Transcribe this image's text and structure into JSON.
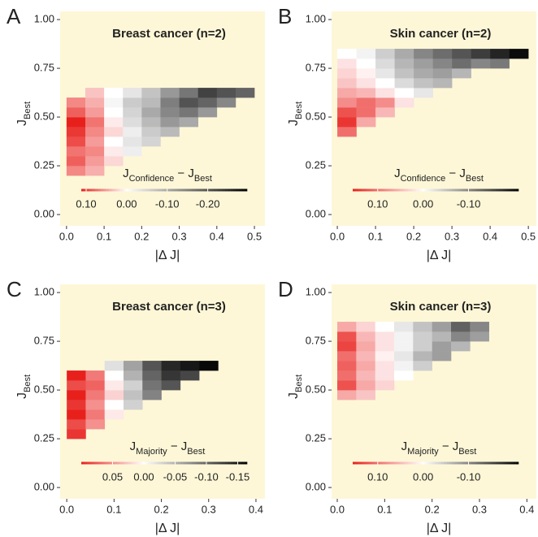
{
  "chart_data": [
    {
      "type": "heatmap",
      "panel_label": "A",
      "title": "Breast cancer (n=2)",
      "xlabel": "|Δ J|",
      "ylabel": [
        "J",
        "Best"
      ],
      "xlim": [
        -0.017,
        0.528
      ],
      "ylim": [
        -0.058,
        1.042
      ],
      "xticks": [
        {
          "value": 0,
          "label": "0.0"
        },
        {
          "value": 0.1,
          "label": "0.1"
        },
        {
          "value": 0.2,
          "label": "0.2"
        },
        {
          "value": 0.3,
          "label": "0.3"
        },
        {
          "value": 0.4,
          "label": "0.4"
        },
        {
          "value": 0.5,
          "label": "0.5"
        }
      ],
      "yticks": [
        {
          "value": 0,
          "label": "0.00"
        },
        {
          "value": 0.25,
          "label": "0.25"
        },
        {
          "value": 0.5,
          "label": "0.50"
        },
        {
          "value": 0.75,
          "label": "0.75"
        },
        {
          "value": 1,
          "label": "1.00"
        }
      ],
      "xbins": [
        0,
        0.05,
        0.1,
        0.15,
        0.2,
        0.25,
        0.3,
        0.35,
        0.4,
        0.45,
        0.5
      ],
      "ybins": [
        0.2,
        0.25,
        0.3,
        0.35,
        0.4,
        0.45,
        0.5,
        0.55,
        0.6,
        0.65
      ],
      "z": [
        [
          0.06,
          0.04,
          null,
          null,
          null,
          null,
          null,
          null,
          null,
          null
        ],
        [
          0.08,
          0.05,
          0.02,
          null,
          null,
          null,
          null,
          null,
          null,
          null
        ],
        [
          0.07,
          0.06,
          0.01,
          -0.02,
          null,
          null,
          null,
          null,
          null,
          null
        ],
        [
          0.09,
          0.05,
          0,
          -0.03,
          -0.05,
          null,
          null,
          null,
          null,
          null
        ],
        [
          0.1,
          0.06,
          0.02,
          -0.02,
          -0.06,
          -0.08,
          null,
          null,
          null,
          null
        ],
        [
          0.12,
          0.07,
          0.01,
          -0.04,
          -0.08,
          -0.12,
          -0.1,
          null,
          null,
          null
        ],
        [
          0.08,
          0.05,
          0,
          -0.05,
          -0.1,
          -0.14,
          -0.16,
          -0.12,
          null,
          null
        ],
        [
          0.06,
          0.04,
          -0.01,
          -0.06,
          -0.08,
          -0.15,
          -0.2,
          -0.18,
          -0.14,
          null
        ],
        [
          null,
          0.03,
          0,
          -0.03,
          -0.07,
          -0.12,
          -0.16,
          -0.22,
          -0.2,
          -0.18
        ]
      ],
      "colorbar_title": [
        "J",
        "Confidence",
        " − J",
        "Best"
      ],
      "clim": [
        0.112,
        -0.297
      ],
      "colorbar_ticks": [
        {
          "value": 0.1,
          "label": "0.10"
        },
        {
          "value": 0,
          "label": "0.00"
        },
        {
          "value": -0.1,
          "label": "-0.10"
        },
        {
          "value": -0.2,
          "label": "-0.20"
        }
      ]
    },
    {
      "type": "heatmap",
      "panel_label": "B",
      "title": "Skin cancer (n=2)",
      "xlabel": "|Δ J|",
      "ylabel": [
        "J",
        "Best"
      ],
      "xlim": [
        -0.015,
        0.521
      ],
      "ylim": [
        -0.058,
        1.042
      ],
      "xticks": [
        {
          "value": 0,
          "label": "0.0"
        },
        {
          "value": 0.1,
          "label": "0.1"
        },
        {
          "value": 0.2,
          "label": "0.2"
        },
        {
          "value": 0.3,
          "label": "0.3"
        },
        {
          "value": 0.4,
          "label": "0.4"
        },
        {
          "value": 0.5,
          "label": "0.5"
        }
      ],
      "yticks": [
        {
          "value": 0,
          "label": "0.00"
        },
        {
          "value": 0.25,
          "label": "0.25"
        },
        {
          "value": 0.5,
          "label": "0.50"
        },
        {
          "value": 0.75,
          "label": "0.75"
        },
        {
          "value": 1,
          "label": "1.00"
        }
      ],
      "xbins": [
        0,
        0.05,
        0.1,
        0.15,
        0.2,
        0.25,
        0.3,
        0.35,
        0.4,
        0.45,
        0.5
      ],
      "ybins": [
        0.4,
        0.45,
        0.5,
        0.55,
        0.6,
        0.65,
        0.7,
        0.75,
        0.8,
        0.85
      ],
      "z": [
        [
          0.1,
          null,
          null,
          null,
          null,
          null,
          null,
          null,
          null,
          null
        ],
        [
          0.14,
          0.06,
          null,
          null,
          null,
          null,
          null,
          null,
          null,
          null
        ],
        [
          0.12,
          0.1,
          0.05,
          null,
          null,
          null,
          null,
          null,
          null,
          null
        ],
        [
          0.08,
          0.1,
          0.08,
          0.02,
          null,
          null,
          null,
          null,
          null,
          null
        ],
        [
          0.06,
          0.05,
          0.02,
          0,
          -0.02,
          null,
          null,
          null,
          null,
          null
        ],
        [
          0.04,
          0.02,
          0,
          -0.03,
          -0.05,
          -0.06,
          null,
          null,
          null,
          null
        ],
        [
          0.03,
          0.01,
          -0.02,
          -0.05,
          -0.07,
          -0.08,
          -0.06,
          null,
          null,
          null
        ],
        [
          0.02,
          0,
          -0.03,
          -0.06,
          -0.08,
          -0.1,
          -0.12,
          -0.1,
          -0.11,
          null
        ],
        [
          0,
          -0.01,
          -0.04,
          -0.07,
          -0.1,
          -0.12,
          -0.14,
          -0.16,
          -0.18,
          -0.2
        ]
      ],
      "colorbar_title": [
        "J",
        "Confidence",
        " − J",
        "Best"
      ],
      "clim": [
        0.155,
        -0.21
      ],
      "colorbar_ticks": [
        {
          "value": 0.1,
          "label": "0.10"
        },
        {
          "value": 0,
          "label": "0.00"
        },
        {
          "value": -0.1,
          "label": "-0.10"
        }
      ]
    },
    {
      "type": "heatmap",
      "panel_label": "C",
      "title": "Breast cancer (n=3)",
      "xlabel": "|Δ J|",
      "ylabel": [
        "J",
        "Best"
      ],
      "xlim": [
        -0.014,
        0.419
      ],
      "ylim": [
        -0.058,
        1.042
      ],
      "xticks": [
        {
          "value": 0,
          "label": "0.0"
        },
        {
          "value": 0.1,
          "label": "0.1"
        },
        {
          "value": 0.2,
          "label": "0.2"
        },
        {
          "value": 0.3,
          "label": "0.3"
        },
        {
          "value": 0.4,
          "label": "0.4"
        }
      ],
      "yticks": [
        {
          "value": 0,
          "label": "0.00"
        },
        {
          "value": 0.25,
          "label": "0.25"
        },
        {
          "value": 0.5,
          "label": "0.50"
        },
        {
          "value": 0.75,
          "label": "0.75"
        },
        {
          "value": 1,
          "label": "1.00"
        }
      ],
      "xbins": [
        0,
        0.04,
        0.08,
        0.12,
        0.16,
        0.2,
        0.24,
        0.28,
        0.32
      ],
      "ybins": [
        0.25,
        0.3,
        0.35,
        0.4,
        0.45,
        0.5,
        0.55,
        0.6,
        0.65
      ],
      "z": [
        [
          0.09,
          null,
          null,
          null,
          null,
          null,
          null,
          null
        ],
        [
          0.08,
          0.05,
          null,
          null,
          null,
          null,
          null,
          null
        ],
        [
          0.1,
          0.06,
          0.01,
          null,
          null,
          null,
          null,
          null
        ],
        [
          0.09,
          0.05,
          0,
          -0.03,
          null,
          null,
          null,
          null
        ],
        [
          0.1,
          0.06,
          0.02,
          -0.04,
          -0.08,
          null,
          null,
          null
        ],
        [
          0.08,
          0.07,
          0.01,
          -0.03,
          -0.09,
          -0.11,
          null,
          null
        ],
        [
          0.1,
          0.06,
          0,
          -0.05,
          -0.1,
          -0.13,
          -0.12,
          null
        ],
        [
          null,
          null,
          -0.02,
          -0.06,
          -0.11,
          -0.14,
          -0.15,
          -0.16
        ]
      ],
      "colorbar_title": [
        "J",
        "Majority",
        " − J",
        "Best"
      ],
      "clim": [
        0.1,
        -0.165
      ],
      "colorbar_ticks": [
        {
          "value": 0.05,
          "label": "0.05"
        },
        {
          "value": 0,
          "label": "0.00"
        },
        {
          "value": -0.05,
          "label": "-0.05"
        },
        {
          "value": -0.1,
          "label": "-0.10"
        },
        {
          "value": -0.15,
          "label": "-0.15"
        }
      ]
    },
    {
      "type": "heatmap",
      "panel_label": "D",
      "title": "Skin cancer (n=3)",
      "xlabel": "|Δ J|",
      "ylabel": [
        "J",
        "Best"
      ],
      "xlim": [
        -0.012,
        0.42
      ],
      "ylim": [
        -0.058,
        1.042
      ],
      "xticks": [
        {
          "value": 0,
          "label": "0.0"
        },
        {
          "value": 0.1,
          "label": "0.1"
        },
        {
          "value": 0.2,
          "label": "0.2"
        },
        {
          "value": 0.3,
          "label": "0.3"
        },
        {
          "value": 0.4,
          "label": "0.4"
        }
      ],
      "yticks": [
        {
          "value": 0,
          "label": "0.00"
        },
        {
          "value": 0.25,
          "label": "0.25"
        },
        {
          "value": 0.5,
          "label": "0.50"
        },
        {
          "value": 0.75,
          "label": "0.75"
        },
        {
          "value": 1,
          "label": "1.00"
        }
      ],
      "xbins": [
        0,
        0.04,
        0.08,
        0.12,
        0.16,
        0.2,
        0.24,
        0.28,
        0.32
      ],
      "ybins": [
        0.45,
        0.5,
        0.55,
        0.6,
        0.65,
        0.7,
        0.75,
        0.8,
        0.85
      ],
      "z": [
        [
          0.06,
          0.04,
          null,
          null,
          null,
          null,
          null,
          null
        ],
        [
          0.12,
          0.06,
          0.03,
          null,
          null,
          null,
          null,
          null
        ],
        [
          0.1,
          0.05,
          0.02,
          0,
          null,
          null,
          null,
          null
        ],
        [
          0.11,
          0.06,
          0.02,
          -0.01,
          -0.04,
          null,
          null,
          null
        ],
        [
          0.1,
          0.05,
          0.01,
          -0.02,
          -0.06,
          -0.08,
          null,
          null
        ],
        [
          0.13,
          0.06,
          0.02,
          -0.01,
          -0.04,
          -0.08,
          -0.06,
          null
        ],
        [
          0.12,
          0.05,
          0.02,
          -0.01,
          -0.04,
          -0.06,
          -0.1,
          -0.08
        ],
        [
          0.06,
          0.03,
          0,
          -0.02,
          -0.05,
          -0.08,
          -0.13,
          -0.1
        ]
      ],
      "colorbar_title": [
        "J",
        "Majority",
        " − J",
        "Best"
      ],
      "clim": [
        0.155,
        -0.21
      ],
      "colorbar_ticks": [
        {
          "value": 0.1,
          "label": "0.10"
        },
        {
          "value": 0,
          "label": "0.00"
        },
        {
          "value": -0.1,
          "label": "-0.10"
        }
      ]
    }
  ]
}
